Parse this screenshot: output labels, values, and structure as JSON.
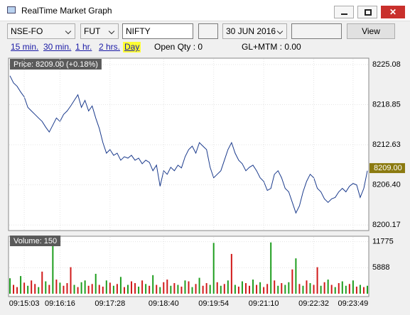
{
  "window": {
    "title": "RealTime Market Graph"
  },
  "toolbar": {
    "exchange": "NSE-FO",
    "instrument": "FUT",
    "symbol": "NIFTY",
    "expiry": "30 JUN 2016",
    "button": "View"
  },
  "intervals": {
    "links": [
      "15 min.",
      "30 min.",
      "1 hr.",
      "2 hrs.",
      "Day"
    ],
    "selected": 4
  },
  "status": {
    "open_qty": "Open Qty : 0",
    "gl_mtm": "GL+MTM : 0.00"
  },
  "chart_data": [
    {
      "type": "line",
      "label": "Price: 8209.00 (+0.18%)",
      "color": "#1a3a8c",
      "grid": true,
      "last_price": {
        "value": 8209,
        "label": "8209.00"
      },
      "xlim": [
        0,
        100
      ],
      "ylim": [
        8199.3,
        8225.85
      ],
      "yticks": [
        8225.08,
        8218.85,
        8212.63,
        {
          "value": 8206.4,
          "label": "8206.40"
        },
        8200.17
      ],
      "values": [
        8223.34,
        8222.24,
        8221.7,
        8220.82,
        8220.06,
        8218.42,
        8217.87,
        8217.33,
        8216.78,
        8216.24,
        8215.36,
        8214.6,
        8215.69,
        8216.78,
        8216.24,
        8217.33,
        8217.87,
        8218.64,
        8219.51,
        8220.39,
        8218.42,
        8219.51,
        8217.87,
        8218.64,
        8216.78,
        8215.14,
        8212.96,
        8211.32,
        8211.87,
        8210.99,
        8211.32,
        8210.23,
        8210.77,
        8210.55,
        8210.99,
        8210.23,
        8210.55,
        8209.68,
        8210.23,
        8209.9,
        8208.59,
        8209.46,
        8206.18,
        8208.59,
        8208.04,
        8209.13,
        8208.59,
        8209.46,
        8209.03,
        8210.77,
        8211.87,
        8212.41,
        8211.32,
        8212.96,
        8212.41,
        8211.87,
        8209.13,
        8207.5,
        8208.04,
        8208.59,
        8210.23,
        8211.87,
        8212.96,
        8211.32,
        8210.23,
        8209.68,
        8208.59,
        8209.13,
        8209.46,
        8208.59,
        8207.5,
        8206.95,
        8205.53,
        8205.86,
        8208.04,
        8208.59,
        8207.5,
        8205.86,
        8205.31,
        8203.67,
        8202.03,
        8203.13,
        8205.31,
        8206.95,
        8208.04,
        8207.5,
        8205.86,
        8205.31,
        8204.22,
        8203.67,
        8204.22,
        8204.44,
        8205.31,
        8205.86,
        8205.31,
        8206.18,
        8206.62,
        8206.4,
        8204.44,
        8205.86,
        8208.59
      ]
    },
    {
      "type": "bar",
      "label": "Volume: 150",
      "grid": true,
      "xlim": [
        0,
        100
      ],
      "ylim": [
        0,
        13000
      ],
      "yticks": [
        11775,
        5888
      ],
      "xticks": [
        {
          "value": 4,
          "label": "09:15:03"
        },
        {
          "value": 14,
          "label": "09:16:16"
        },
        {
          "value": 28,
          "label": "09:17:28"
        },
        {
          "value": 43,
          "label": "09:18:40"
        },
        {
          "value": 57,
          "label": "09:19:54"
        },
        {
          "value": 71,
          "label": "09:21:10"
        },
        {
          "value": 85,
          "label": "09:22:32"
        },
        {
          "value": 96,
          "label": "09:23:49"
        }
      ],
      "values": [
        3500,
        2000,
        1500,
        4000,
        2500,
        1800,
        3000,
        2200,
        1500,
        5000,
        2800,
        2000,
        11000,
        3200,
        2500,
        1800,
        2400,
        6000,
        2000,
        1500,
        2600,
        3000,
        1800,
        2200,
        4500,
        2000,
        1600,
        3000,
        2500,
        1800,
        2200,
        3800,
        1500,
        2000,
        2800,
        2400,
        1600,
        3000,
        2200,
        1800,
        4200,
        2000,
        1500,
        2600,
        3200,
        1800,
        2400,
        2000,
        1600,
        3000,
        2800,
        1500,
        2200,
        3600,
        1800,
        2400,
        2000,
        11500,
        2600,
        1800,
        2200,
        3000,
        9000,
        2000,
        1600,
        2800,
        2400,
        1800,
        3200,
        2000,
        2600,
        1500,
        2200,
        11600,
        3000,
        1800,
        2400,
        2000,
        2600,
        5500,
        8000,
        2200,
        1800,
        3000,
        2400,
        2000,
        6000,
        1800,
        2600,
        3200,
        2000,
        1500,
        2400,
        2800,
        1800,
        2200,
        3000,
        1600,
        2000,
        1500,
        1800
      ],
      "colors": [
        "#1f9e1f",
        "#d11a1a",
        "#d11a1a",
        "#1f9e1f",
        "#d11a1a",
        "#1f9e1f",
        "#d11a1a",
        "#d11a1a",
        "#1f9e1f",
        "#d11a1a",
        "#1f9e1f",
        "#d11a1a",
        "#1f9e1f",
        "#d11a1a",
        "#1f9e1f",
        "#d11a1a",
        "#d11a1a",
        "#d11a1a",
        "#1f9e1f",
        "#d11a1a",
        "#1f9e1f",
        "#1f9e1f",
        "#d11a1a",
        "#d11a1a",
        "#1f9e1f",
        "#d11a1a",
        "#d11a1a",
        "#1f9e1f",
        "#d11a1a",
        "#1f9e1f",
        "#d11a1a",
        "#1f9e1f",
        "#d11a1a",
        "#1f9e1f",
        "#d11a1a",
        "#d11a1a",
        "#1f9e1f",
        "#d11a1a",
        "#1f9e1f",
        "#d11a1a",
        "#1f9e1f",
        "#d11a1a",
        "#1f9e1f",
        "#d11a1a",
        "#d11a1a",
        "#1f9e1f",
        "#d11a1a",
        "#1f9e1f",
        "#d11a1a",
        "#1f9e1f",
        "#d11a1a",
        "#1f9e1f",
        "#d11a1a",
        "#1f9e1f",
        "#d11a1a",
        "#d11a1a",
        "#1f9e1f",
        "#1f9e1f",
        "#d11a1a",
        "#1f9e1f",
        "#d11a1a",
        "#1f9e1f",
        "#d11a1a",
        "#1f9e1f",
        "#d11a1a",
        "#1f9e1f",
        "#d11a1a",
        "#d11a1a",
        "#1f9e1f",
        "#d11a1a",
        "#1f9e1f",
        "#d11a1a",
        "#d11a1a",
        "#1f9e1f",
        "#d11a1a",
        "#1f9e1f",
        "#d11a1a",
        "#1f9e1f",
        "#1f9e1f",
        "#d11a1a",
        "#1f9e1f",
        "#d11a1a",
        "#1f9e1f",
        "#d11a1a",
        "#1f9e1f",
        "#d11a1a",
        "#d11a1a",
        "#1f9e1f",
        "#d11a1a",
        "#1f9e1f",
        "#d11a1a",
        "#1f9e1f",
        "#d11a1a",
        "#1f9e1f",
        "#1f9e1f",
        "#d11a1a",
        "#1f9e1f",
        "#d11a1a",
        "#1f9e1f",
        "#d11a1a",
        "#1f9e1f"
      ]
    }
  ]
}
